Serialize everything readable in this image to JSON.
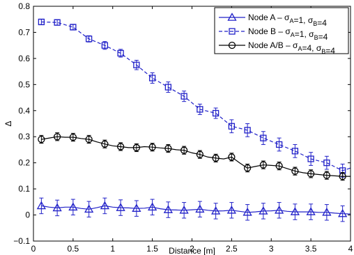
{
  "chart_data": {
    "type": "line",
    "xlabel": "Distance [m]",
    "ylabel": "Δ",
    "xlim": [
      0,
      4
    ],
    "ylim": [
      -0.1,
      0.8
    ],
    "xticks": [
      0,
      0.5,
      1,
      1.5,
      2,
      2.5,
      3,
      3.5,
      4
    ],
    "yticks": [
      -0.1,
      0,
      0.1,
      0.2,
      0.3,
      0.4,
      0.5,
      0.6,
      0.7,
      0.8
    ],
    "xtick_labels": [
      "0",
      "0.5",
      "1",
      "1.5",
      "2",
      "2.5",
      "3",
      "3.5",
      "4"
    ],
    "ytick_labels": [
      "−0.1",
      "0",
      "0.1",
      "0.2",
      "0.3",
      "0.4",
      "0.5",
      "0.6",
      "0.7",
      "0.8"
    ],
    "grid": false,
    "legend_position": "top-right",
    "series": [
      {
        "name_main": "Node A – σ",
        "name_parts": [
          {
            "t": "Node A – σ",
            "sub": false
          },
          {
            "t": "A",
            "sub": true
          },
          {
            "t": "=1, σ",
            "sub": false
          },
          {
            "t": "B",
            "sub": true
          },
          {
            "t": "=4",
            "sub": false
          }
        ],
        "color": "#2020c8",
        "marker": "triangle",
        "line_style": "solid",
        "x": [
          0.1,
          0.3,
          0.5,
          0.7,
          0.9,
          1.1,
          1.3,
          1.5,
          1.7,
          1.9,
          2.1,
          2.3,
          2.5,
          2.7,
          2.9,
          3.1,
          3.3,
          3.5,
          3.7,
          3.9
        ],
        "values": [
          0.035,
          0.027,
          0.03,
          0.022,
          0.035,
          0.028,
          0.025,
          0.03,
          0.02,
          0.018,
          0.022,
          0.015,
          0.018,
          0.01,
          0.015,
          0.018,
          0.012,
          0.012,
          0.01,
          0.005
        ],
        "err": [
          0.03,
          0.03,
          0.03,
          0.03,
          0.03,
          0.03,
          0.03,
          0.03,
          0.03,
          0.03,
          0.03,
          0.03,
          0.03,
          0.03,
          0.03,
          0.03,
          0.03,
          0.03,
          0.03,
          0.03
        ],
        "line_x": [
          0.1,
          0.2,
          0.3,
          0.4,
          0.5,
          0.6,
          0.7,
          0.8,
          0.9,
          1.0,
          1.1,
          1.2,
          1.3,
          1.4,
          1.5,
          1.6,
          1.7,
          1.8,
          1.9,
          2.0,
          2.1,
          2.2,
          2.3,
          2.4,
          2.5,
          2.6,
          2.7,
          2.8,
          2.9,
          3.0,
          3.1,
          3.2,
          3.3,
          3.4,
          3.5,
          3.6,
          3.7,
          3.8,
          3.9,
          4.0
        ],
        "line_y": [
          0.035,
          0.03,
          0.027,
          0.03,
          0.03,
          0.025,
          0.022,
          0.028,
          0.035,
          0.03,
          0.028,
          0.027,
          0.025,
          0.026,
          0.03,
          0.024,
          0.02,
          0.019,
          0.018,
          0.02,
          0.022,
          0.018,
          0.015,
          0.016,
          0.018,
          0.014,
          0.01,
          0.012,
          0.015,
          0.016,
          0.018,
          0.014,
          0.012,
          0.012,
          0.012,
          0.01,
          0.01,
          0.007,
          0.005,
          0.004
        ]
      },
      {
        "name_parts": [
          {
            "t": "Node B – σ",
            "sub": false
          },
          {
            "t": "A",
            "sub": true
          },
          {
            "t": "=1, σ",
            "sub": false
          },
          {
            "t": "B",
            "sub": true
          },
          {
            "t": "=4",
            "sub": false
          }
        ],
        "color": "#2020c8",
        "marker": "square",
        "line_style": "dashed",
        "x": [
          0.1,
          0.3,
          0.5,
          0.7,
          0.9,
          1.1,
          1.3,
          1.5,
          1.7,
          1.9,
          2.1,
          2.3,
          2.5,
          2.7,
          2.9,
          3.1,
          3.3,
          3.5,
          3.7,
          3.9
        ],
        "values": [
          0.74,
          0.738,
          0.72,
          0.675,
          0.65,
          0.62,
          0.575,
          0.525,
          0.49,
          0.455,
          0.405,
          0.39,
          0.34,
          0.325,
          0.295,
          0.27,
          0.245,
          0.215,
          0.2,
          0.17
        ],
        "err": [
          0.01,
          0.01,
          0.01,
          0.012,
          0.015,
          0.015,
          0.018,
          0.02,
          0.02,
          0.02,
          0.02,
          0.02,
          0.025,
          0.025,
          0.025,
          0.025,
          0.025,
          0.025,
          0.025,
          0.025
        ],
        "line_x": [
          0.1,
          0.3,
          0.5,
          0.7,
          0.9,
          1.1,
          1.3,
          1.5,
          1.7,
          1.9,
          2.1,
          2.3,
          2.5,
          2.7,
          2.9,
          3.1,
          3.3,
          3.5,
          3.7,
          3.9,
          4.0
        ],
        "line_y": [
          0.74,
          0.738,
          0.72,
          0.675,
          0.65,
          0.62,
          0.575,
          0.525,
          0.49,
          0.455,
          0.405,
          0.39,
          0.34,
          0.325,
          0.295,
          0.27,
          0.245,
          0.215,
          0.2,
          0.17,
          0.18
        ]
      },
      {
        "name_parts": [
          {
            "t": "Node A/B – σ",
            "sub": false
          },
          {
            "t": "A",
            "sub": true
          },
          {
            "t": "=4, σ",
            "sub": false
          },
          {
            "t": "B",
            "sub": true
          },
          {
            "t": "=4",
            "sub": false
          }
        ],
        "color": "#000000",
        "marker": "circle",
        "line_style": "solid",
        "x": [
          0.1,
          0.3,
          0.5,
          0.7,
          0.9,
          1.1,
          1.3,
          1.5,
          1.7,
          1.9,
          2.1,
          2.3,
          2.5,
          2.7,
          2.9,
          3.1,
          3.3,
          3.5,
          3.7,
          3.9
        ],
        "values": [
          0.29,
          0.3,
          0.298,
          0.29,
          0.272,
          0.262,
          0.258,
          0.26,
          0.255,
          0.248,
          0.232,
          0.218,
          0.222,
          0.18,
          0.192,
          0.188,
          0.168,
          0.158,
          0.152,
          0.148
        ],
        "err": [
          0.015,
          0.015,
          0.015,
          0.015,
          0.015,
          0.015,
          0.015,
          0.015,
          0.015,
          0.015,
          0.015,
          0.015,
          0.015,
          0.015,
          0.015,
          0.015,
          0.015,
          0.015,
          0.015,
          0.015
        ],
        "line_x": [
          0.1,
          0.2,
          0.3,
          0.4,
          0.5,
          0.6,
          0.7,
          0.8,
          0.9,
          1.0,
          1.1,
          1.2,
          1.3,
          1.4,
          1.5,
          1.6,
          1.7,
          1.8,
          1.9,
          2.0,
          2.1,
          2.2,
          2.3,
          2.4,
          2.5,
          2.6,
          2.7,
          2.8,
          2.9,
          3.0,
          3.1,
          3.2,
          3.3,
          3.4,
          3.5,
          3.6,
          3.7,
          3.8,
          3.9,
          4.0
        ],
        "line_y": [
          0.29,
          0.295,
          0.3,
          0.298,
          0.298,
          0.293,
          0.29,
          0.28,
          0.272,
          0.265,
          0.262,
          0.258,
          0.258,
          0.262,
          0.26,
          0.257,
          0.255,
          0.25,
          0.248,
          0.238,
          0.232,
          0.222,
          0.218,
          0.215,
          0.222,
          0.2,
          0.18,
          0.186,
          0.192,
          0.19,
          0.188,
          0.178,
          0.168,
          0.162,
          0.158,
          0.155,
          0.152,
          0.15,
          0.148,
          0.148
        ]
      }
    ]
  }
}
